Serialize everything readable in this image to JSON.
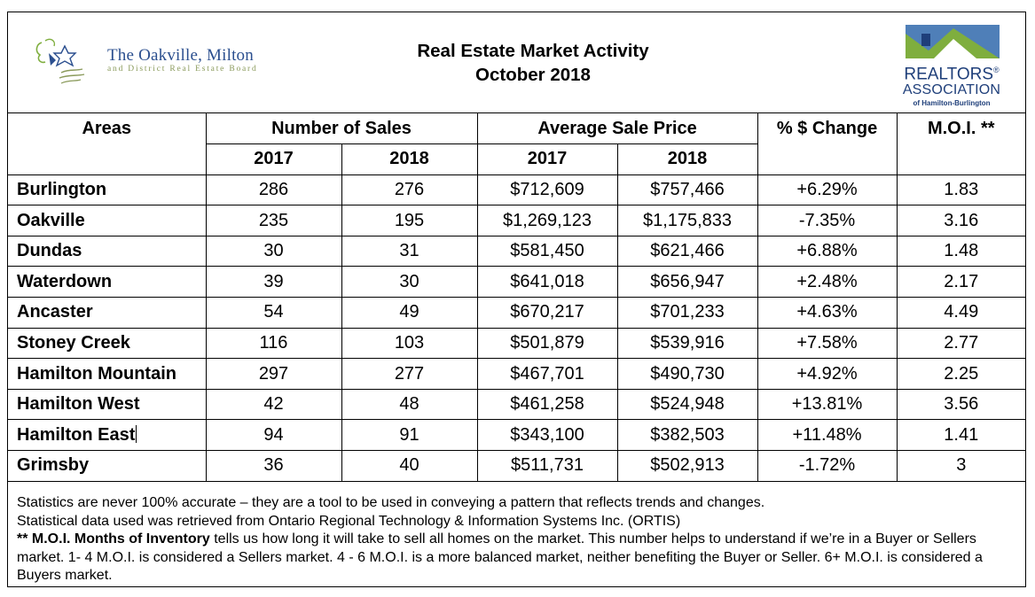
{
  "header": {
    "board_name": "The Oakville, Milton",
    "board_subtitle": "and District Real Estate Board",
    "title_line1": "Real Estate Market Activity",
    "title_line2": "October 2018",
    "assoc_line1": "REALTORS",
    "assoc_reg": "®",
    "assoc_line2": "ASSOCIATION",
    "assoc_line3": "of Hamilton-Burlington",
    "colors": {
      "board_blue": "#2b4f8f",
      "board_green": "#8a9a5b",
      "assoc_navy": "#1f3f7a",
      "assoc_green": "#7fae3e",
      "assoc_blue": "#4f7fb8"
    },
    "icons": [
      "oakville-board-logo-icon",
      "realtors-association-logo-icon"
    ]
  },
  "table": {
    "col_headers": {
      "areas": "Areas",
      "sales": "Number of Sales",
      "price": "Average Sale Price",
      "change": "% $ Change",
      "moi": "M.O.I. **"
    },
    "years": [
      "2017",
      "2018",
      "2017",
      "2018"
    ],
    "rows": [
      {
        "area": "Burlington",
        "sales_2017": "286",
        "sales_2018": "276",
        "price_2017": "$712,609",
        "price_2018": "$757,466",
        "change": "+6.29%",
        "moi": "1.83"
      },
      {
        "area": "Oakville",
        "sales_2017": "235",
        "sales_2018": "195",
        "price_2017": "$1,269,123",
        "price_2018": "$1,175,833",
        "change": "-7.35%",
        "moi": "3.16"
      },
      {
        "area": "Dundas",
        "sales_2017": "30",
        "sales_2018": "31",
        "price_2017": "$581,450",
        "price_2018": "$621,466",
        "change": "+6.88%",
        "moi": "1.48"
      },
      {
        "area": "Waterdown",
        "sales_2017": "39",
        "sales_2018": "30",
        "price_2017": "$641,018",
        "price_2018": "$656,947",
        "change": "+2.48%",
        "moi": "2.17"
      },
      {
        "area": "Ancaster",
        "sales_2017": "54",
        "sales_2018": "49",
        "price_2017": "$670,217",
        "price_2018": "$701,233",
        "change": "+4.63%",
        "moi": "4.49"
      },
      {
        "area": "Stoney Creek",
        "sales_2017": "116",
        "sales_2018": "103",
        "price_2017": "$501,879",
        "price_2018": "$539,916",
        "change": "+7.58%",
        "moi": "2.77"
      },
      {
        "area": "Hamilton Mountain",
        "sales_2017": "297",
        "sales_2018": "277",
        "price_2017": "$467,701",
        "price_2018": "$490,730",
        "change": "+4.92%",
        "moi": "2.25"
      },
      {
        "area": "Hamilton West",
        "sales_2017": "42",
        "sales_2018": "48",
        "price_2017": "$461,258",
        "price_2018": "$524,948",
        "change": "+13.81%",
        "moi": "3.56"
      },
      {
        "area": "Hamilton East",
        "sales_2017": "94",
        "sales_2018": "91",
        "price_2017": "$343,100",
        "price_2018": "$382,503",
        "change": "+11.48%",
        "moi": "1.41"
      },
      {
        "area": "Grimsby",
        "sales_2017": "36",
        "sales_2018": "40",
        "price_2017": "$511,731",
        "price_2018": "$502,913",
        "change": "-1.72%",
        "moi": "3"
      }
    ]
  },
  "notes": {
    "line1": "Statistics are never 100% accurate – they are a tool to be used in conveying a pattern that reflects trends and changes.",
    "line2": "Statistical data used was retrieved from Ontario Regional Technology & Information Systems Inc. (ORTIS)",
    "moi_bold": "** M.O.I. Months of Inventory",
    "moi_text": " tells us how long it will take to sell all homes on the market. This number helps to understand if we’re in a Buyer or Sellers market. 1- 4 M.O.I. is considered a Sellers market. 4 - 6 M.O.I. is a more balanced market, neither benefiting the Buyer or Seller. 6+ M.O.I. is considered a Buyers market."
  }
}
